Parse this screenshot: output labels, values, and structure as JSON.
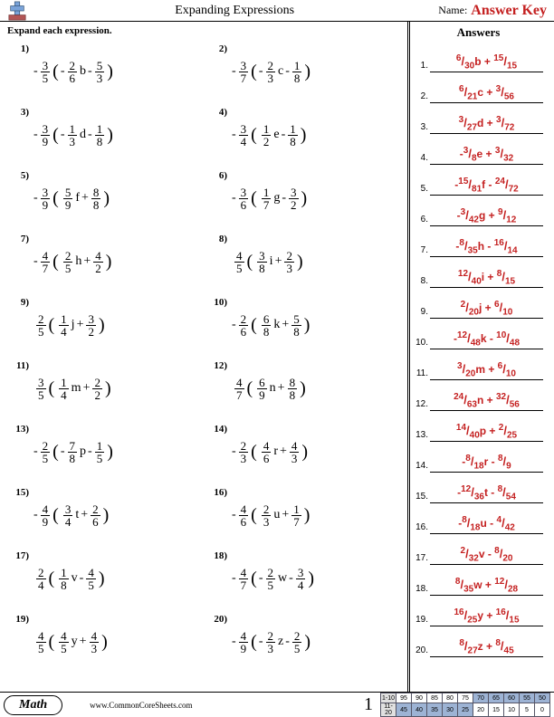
{
  "header": {
    "title": "Expanding Expressions",
    "name_label": "Name:",
    "answer_key": "Answer Key"
  },
  "instruction": "Expand each expression.",
  "answers_title": "Answers",
  "problems": [
    {
      "n": "1)",
      "s1": "-",
      "nu1": "3",
      "de1": "5",
      "p": "(",
      "s2": "-",
      "nu2": "2",
      "de2": "6",
      "v": "b",
      "op": "-",
      "nu3": "5",
      "de3": "3",
      "c": ")"
    },
    {
      "n": "2)",
      "s1": "-",
      "nu1": "3",
      "de1": "7",
      "p": "(",
      "s2": "-",
      "nu2": "2",
      "de2": "3",
      "v": "c",
      "op": "-",
      "nu3": "1",
      "de3": "8",
      "c": ")"
    },
    {
      "n": "3)",
      "s1": "-",
      "nu1": "3",
      "de1": "9",
      "p": "(",
      "s2": "-",
      "nu2": "1",
      "de2": "3",
      "v": "d",
      "op": "-",
      "nu3": "1",
      "de3": "8",
      "c": ")"
    },
    {
      "n": "4)",
      "s1": "-",
      "nu1": "3",
      "de1": "4",
      "p": "(",
      "s2": "",
      "nu2": "1",
      "de2": "2",
      "v": "e",
      "op": "-",
      "nu3": "1",
      "de3": "8",
      "c": ")"
    },
    {
      "n": "5)",
      "s1": "-",
      "nu1": "3",
      "de1": "9",
      "p": "(",
      "s2": "",
      "nu2": "5",
      "de2": "9",
      "v": "f",
      "op": "+",
      "nu3": "8",
      "de3": "8",
      "c": ")"
    },
    {
      "n": "6)",
      "s1": "-",
      "nu1": "3",
      "de1": "6",
      "p": "(",
      "s2": "",
      "nu2": "1",
      "de2": "7",
      "v": "g",
      "op": "-",
      "nu3": "3",
      "de3": "2",
      "c": ")"
    },
    {
      "n": "7)",
      "s1": "-",
      "nu1": "4",
      "de1": "7",
      "p": "(",
      "s2": "",
      "nu2": "2",
      "de2": "5",
      "v": "h",
      "op": "+",
      "nu3": "4",
      "de3": "2",
      "c": ")"
    },
    {
      "n": "8)",
      "s1": "",
      "nu1": "4",
      "de1": "5",
      "p": "(",
      "s2": "",
      "nu2": "3",
      "de2": "8",
      "v": "i",
      "op": "+",
      "nu3": "2",
      "de3": "3",
      "c": ")"
    },
    {
      "n": "9)",
      "s1": "",
      "nu1": "2",
      "de1": "5",
      "p": "(",
      "s2": "",
      "nu2": "1",
      "de2": "4",
      "v": "j",
      "op": "+",
      "nu3": "3",
      "de3": "2",
      "c": ")"
    },
    {
      "n": "10)",
      "s1": "-",
      "nu1": "2",
      "de1": "6",
      "p": "(",
      "s2": "",
      "nu2": "6",
      "de2": "8",
      "v": "k",
      "op": "+",
      "nu3": "5",
      "de3": "8",
      "c": ")"
    },
    {
      "n": "11)",
      "s1": "",
      "nu1": "3",
      "de1": "5",
      "p": "(",
      "s2": "",
      "nu2": "1",
      "de2": "4",
      "v": "m",
      "op": "+",
      "nu3": "2",
      "de3": "2",
      "c": ")"
    },
    {
      "n": "12)",
      "s1": "",
      "nu1": "4",
      "de1": "7",
      "p": "(",
      "s2": "",
      "nu2": "6",
      "de2": "9",
      "v": "n",
      "op": "+",
      "nu3": "8",
      "de3": "8",
      "c": ")"
    },
    {
      "n": "13)",
      "s1": "-",
      "nu1": "2",
      "de1": "5",
      "p": "(",
      "s2": "-",
      "nu2": "7",
      "de2": "8",
      "v": "p",
      "op": "-",
      "nu3": "1",
      "de3": "5",
      "c": ")"
    },
    {
      "n": "14)",
      "s1": "-",
      "nu1": "2",
      "de1": "3",
      "p": "(",
      "s2": "",
      "nu2": "4",
      "de2": "6",
      "v": "r",
      "op": "+",
      "nu3": "4",
      "de3": "3",
      "c": ")"
    },
    {
      "n": "15)",
      "s1": "-",
      "nu1": "4",
      "de1": "9",
      "p": "(",
      "s2": "",
      "nu2": "3",
      "de2": "4",
      "v": "t",
      "op": "+",
      "nu3": "2",
      "de3": "6",
      "c": ")"
    },
    {
      "n": "16)",
      "s1": "-",
      "nu1": "4",
      "de1": "6",
      "p": "(",
      "s2": "",
      "nu2": "2",
      "de2": "3",
      "v": "u",
      "op": "+",
      "nu3": "1",
      "de3": "7",
      "c": ")"
    },
    {
      "n": "17)",
      "s1": "",
      "nu1": "2",
      "de1": "4",
      "p": "(",
      "s2": "",
      "nu2": "1",
      "de2": "8",
      "v": "v",
      "op": "-",
      "nu3": "4",
      "de3": "5",
      "c": ")"
    },
    {
      "n": "18)",
      "s1": "-",
      "nu1": "4",
      "de1": "7",
      "p": "(",
      "s2": "-",
      "nu2": "2",
      "de2": "5",
      "v": "w",
      "op": "-",
      "nu3": "3",
      "de3": "4",
      "c": ")"
    },
    {
      "n": "19)",
      "s1": "",
      "nu1": "4",
      "de1": "5",
      "p": "(",
      "s2": "",
      "nu2": "4",
      "de2": "5",
      "v": "y",
      "op": "+",
      "nu3": "4",
      "de3": "3",
      "c": ")"
    },
    {
      "n": "20)",
      "s1": "-",
      "nu1": "4",
      "de1": "9",
      "p": "(",
      "s2": "-",
      "nu2": "2",
      "de2": "3",
      "v": "z",
      "op": "-",
      "nu3": "2",
      "de3": "5",
      "c": ")"
    }
  ],
  "answers": [
    {
      "n": "1.",
      "s1": "",
      "nu1": "6",
      "de1": "30",
      "v": "b",
      "op": "+",
      "nu2": "15",
      "de2": "15"
    },
    {
      "n": "2.",
      "s1": "",
      "nu1": "6",
      "de1": "21",
      "v": "c",
      "op": "+",
      "nu2": "3",
      "de2": "56"
    },
    {
      "n": "3.",
      "s1": "",
      "nu1": "3",
      "de1": "27",
      "v": "d",
      "op": "+",
      "nu2": "3",
      "de2": "72"
    },
    {
      "n": "4.",
      "s1": "-",
      "nu1": "3",
      "de1": "8",
      "v": "e",
      "op": "+",
      "nu2": "3",
      "de2": "32"
    },
    {
      "n": "5.",
      "s1": "-",
      "nu1": "15",
      "de1": "81",
      "v": "f",
      "op": "-",
      "nu2": "24",
      "de2": "72"
    },
    {
      "n": "6.",
      "s1": "-",
      "nu1": "3",
      "de1": "42",
      "v": "g",
      "op": "+",
      "nu2": "9",
      "de2": "12"
    },
    {
      "n": "7.",
      "s1": "-",
      "nu1": "8",
      "de1": "35",
      "v": "h",
      "op": "-",
      "nu2": "16",
      "de2": "14"
    },
    {
      "n": "8.",
      "s1": "",
      "nu1": "12",
      "de1": "40",
      "v": "i",
      "op": "+",
      "nu2": "8",
      "de2": "15"
    },
    {
      "n": "9.",
      "s1": "",
      "nu1": "2",
      "de1": "20",
      "v": "j",
      "op": "+",
      "nu2": "6",
      "de2": "10"
    },
    {
      "n": "10.",
      "s1": "-",
      "nu1": "12",
      "de1": "48",
      "v": "k",
      "op": "-",
      "nu2": "10",
      "de2": "48"
    },
    {
      "n": "11.",
      "s1": "",
      "nu1": "3",
      "de1": "20",
      "v": "m",
      "op": "+",
      "nu2": "6",
      "de2": "10"
    },
    {
      "n": "12.",
      "s1": "",
      "nu1": "24",
      "de1": "63",
      "v": "n",
      "op": "+",
      "nu2": "32",
      "de2": "56"
    },
    {
      "n": "13.",
      "s1": "",
      "nu1": "14",
      "de1": "40",
      "v": "p",
      "op": "+",
      "nu2": "2",
      "de2": "25"
    },
    {
      "n": "14.",
      "s1": "-",
      "nu1": "8",
      "de1": "18",
      "v": "r",
      "op": "-",
      "nu2": "8",
      "de2": "9"
    },
    {
      "n": "15.",
      "s1": "-",
      "nu1": "12",
      "de1": "36",
      "v": "t",
      "op": "-",
      "nu2": "8",
      "de2": "54"
    },
    {
      "n": "16.",
      "s1": "-",
      "nu1": "8",
      "de1": "18",
      "v": "u",
      "op": "-",
      "nu2": "4",
      "de2": "42"
    },
    {
      "n": "17.",
      "s1": "",
      "nu1": "2",
      "de1": "32",
      "v": "v",
      "op": "-",
      "nu2": "8",
      "de2": "20"
    },
    {
      "n": "18.",
      "s1": "",
      "nu1": "8",
      "de1": "35",
      "v": "w",
      "op": "+",
      "nu2": "12",
      "de2": "28"
    },
    {
      "n": "19.",
      "s1": "",
      "nu1": "16",
      "de1": "25",
      "v": "y",
      "op": "+",
      "nu2": "16",
      "de2": "15"
    },
    {
      "n": "20.",
      "s1": "",
      "nu1": "8",
      "de1": "27",
      "v": "z",
      "op": "+",
      "nu2": "8",
      "de2": "45"
    }
  ],
  "footer": {
    "subject": "Math",
    "url": "www.CommonCoreSheets.com",
    "page": "1",
    "score": {
      "r1_label": "1-10",
      "r2_label": "11-20",
      "r1": [
        "95",
        "90",
        "85",
        "80",
        "75",
        "70",
        "65",
        "60",
        "55",
        "50"
      ],
      "r2": [
        "45",
        "40",
        "35",
        "30",
        "25",
        "20",
        "15",
        "10",
        "5",
        "0"
      ]
    }
  }
}
